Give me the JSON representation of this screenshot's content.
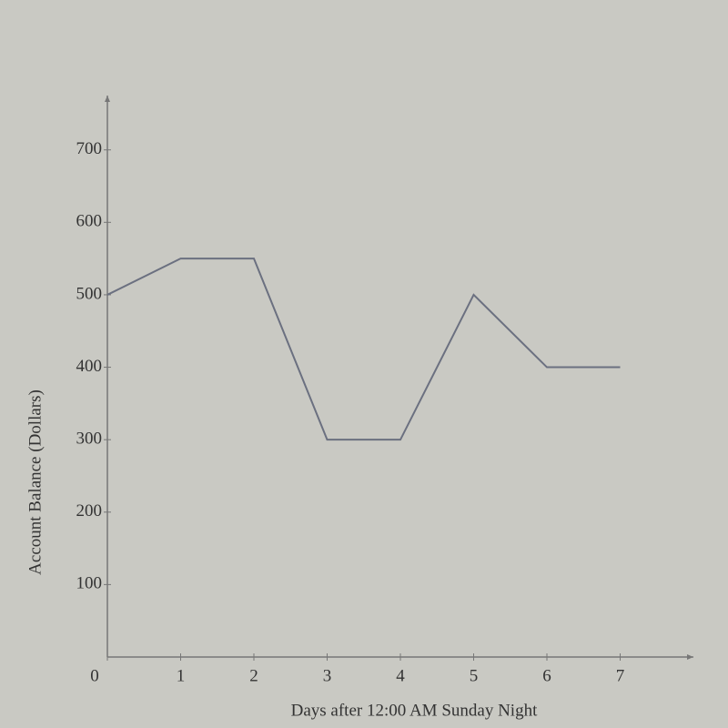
{
  "chart_data": {
    "type": "line",
    "x_label": "Days after 12:00 AM Sunday Night",
    "y_label": "Account Balance (Dollars)",
    "x": [
      0,
      1,
      2,
      3,
      4,
      5,
      6,
      7
    ],
    "series": [
      {
        "values": [
          500,
          550,
          550,
          300,
          300,
          500,
          400,
          400
        ],
        "color": "#6b7080"
      }
    ],
    "xlim": [
      0,
      8
    ],
    "ylim": [
      0,
      775
    ],
    "xticks": [
      0,
      1,
      2,
      3,
      4,
      5,
      6,
      7
    ],
    "yticks": [
      100,
      200,
      300,
      400,
      500,
      600,
      700
    ]
  }
}
